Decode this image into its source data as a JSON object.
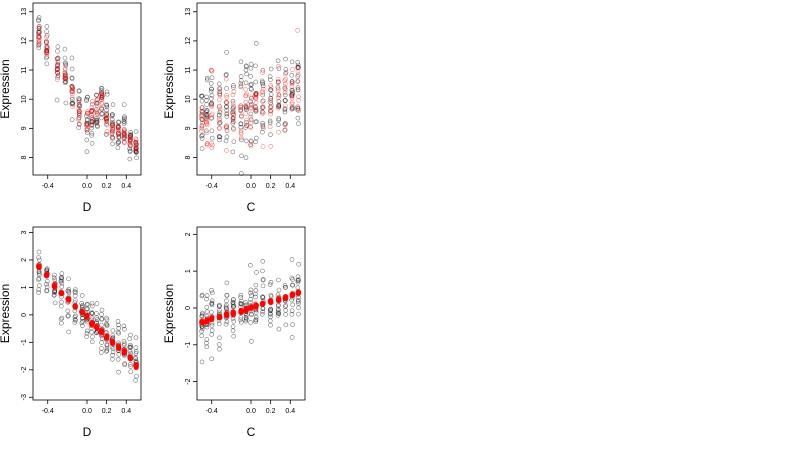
{
  "chart_data": [
    {
      "type": "scatter",
      "xlabel": "D",
      "ylabel": "Expression",
      "xlim": [
        -0.55,
        0.55
      ],
      "ylim": [
        7.4,
        13.3
      ],
      "xticks": [
        -0.4,
        0.0,
        0.2,
        0.4
      ],
      "xtick_labels": [
        "-0.4",
        "0.0",
        "0.2",
        "0.4"
      ],
      "yticks": [
        8,
        9,
        10,
        11,
        12,
        13
      ],
      "ytick_labels": [
        "8",
        "9",
        "10",
        "11",
        "12",
        "13"
      ],
      "grid": false,
      "x_levels": [
        -0.49,
        -0.41,
        -0.3,
        -0.22,
        -0.15,
        -0.08,
        0.0,
        0.05,
        0.1,
        0.15,
        0.2,
        0.26,
        0.32,
        0.38,
        0.44,
        0.5
      ],
      "series": [
        {
          "kind": "observed",
          "color": "#000000",
          "marker": "open-circle",
          "x_levels": [
            -0.49,
            -0.41,
            -0.3,
            -0.22,
            -0.15,
            -0.08,
            0.0,
            0.05,
            0.1,
            0.15,
            0.2,
            0.26,
            0.32,
            0.38,
            0.44,
            0.5
          ],
          "centers": [
            12.1,
            11.7,
            11.1,
            10.8,
            10.3,
            9.8,
            9.4,
            9.2,
            9.6,
            9.9,
            9.3,
            9.0,
            8.8,
            8.9,
            8.6,
            8.5
          ],
          "spread": [
            0.6,
            0.7,
            0.7,
            0.8,
            0.9,
            0.9,
            0.8,
            0.8,
            0.8,
            0.8,
            0.7,
            0.6,
            0.6,
            0.6,
            0.6,
            0.5
          ]
        },
        {
          "kind": "fitted",
          "color": "#ff0000",
          "marker": "open-circle",
          "x_levels": [
            -0.49,
            -0.41,
            -0.3,
            -0.22,
            -0.15,
            -0.08,
            0.0,
            0.05,
            0.1,
            0.15,
            0.2,
            0.26,
            0.32,
            0.38,
            0.44,
            0.5
          ],
          "centers": [
            12.1,
            11.8,
            11.1,
            10.8,
            10.2,
            9.6,
            9.3,
            9.4,
            9.8,
            9.9,
            9.3,
            9.0,
            8.9,
            8.8,
            8.6,
            8.4
          ],
          "spread": [
            0.3,
            0.3,
            0.3,
            0.3,
            0.4,
            0.4,
            0.4,
            0.4,
            0.4,
            0.4,
            0.3,
            0.3,
            0.3,
            0.3,
            0.3,
            0.3
          ]
        }
      ]
    },
    {
      "type": "scatter",
      "xlabel": "C",
      "ylabel": "Expression",
      "xlim": [
        -0.55,
        0.55
      ],
      "ylim": [
        7.4,
        13.3
      ],
      "xticks": [
        -0.4,
        0.0,
        0.2,
        0.4
      ],
      "xtick_labels": [
        "-0.4",
        "0.0",
        "0.2",
        "0.4"
      ],
      "yticks": [
        8,
        9,
        10,
        11,
        12,
        13
      ],
      "ytick_labels": [
        "8",
        "9",
        "10",
        "11",
        "12",
        "13"
      ],
      "grid": false,
      "series": [
        {
          "kind": "observed",
          "color": "#000000",
          "marker": "open-circle",
          "x_levels": [
            -0.5,
            -0.45,
            -0.4,
            -0.32,
            -0.25,
            -0.18,
            -0.1,
            -0.05,
            0.0,
            0.05,
            0.12,
            0.2,
            0.28,
            0.35,
            0.42,
            0.48
          ],
          "centers": [
            9.3,
            9.4,
            9.5,
            9.6,
            9.6,
            9.7,
            9.7,
            9.8,
            9.8,
            9.9,
            9.9,
            10.0,
            10.1,
            10.1,
            10.2,
            10.3
          ],
          "spread": [
            1.2,
            1.3,
            1.3,
            1.3,
            1.3,
            1.4,
            1.4,
            1.4,
            1.4,
            1.4,
            1.4,
            1.3,
            1.3,
            1.4,
            1.4,
            1.4
          ]
        },
        {
          "kind": "fitted",
          "color": "#ff0000",
          "marker": "open-circle",
          "x_levels": [
            -0.5,
            -0.45,
            -0.4,
            -0.32,
            -0.25,
            -0.18,
            -0.1,
            -0.05,
            0.0,
            0.05,
            0.12,
            0.2,
            0.28,
            0.35,
            0.42,
            0.48
          ],
          "centers": [
            9.3,
            9.4,
            9.5,
            9.6,
            9.6,
            9.7,
            9.7,
            9.8,
            9.8,
            9.9,
            9.9,
            10.0,
            10.1,
            10.1,
            10.2,
            10.3
          ],
          "spread": [
            1.0,
            1.0,
            1.1,
            1.0,
            1.0,
            1.0,
            1.1,
            1.1,
            1.0,
            1.0,
            1.1,
            1.1,
            1.1,
            1.1,
            1.1,
            1.2
          ]
        }
      ]
    },
    {
      "type": "scatter",
      "xlabel": "D",
      "ylabel": "Expression",
      "xlim": [
        -0.55,
        0.55
      ],
      "ylim": [
        -3.1,
        3.2
      ],
      "xticks": [
        -0.4,
        0.0,
        0.2,
        0.4
      ],
      "xtick_labels": [
        "-0.4",
        "0.0",
        "0.2",
        "0.4"
      ],
      "yticks": [
        -3,
        -2,
        -1,
        0,
        1,
        2,
        3
      ],
      "ytick_labels": [
        "-3",
        "-2",
        "-1",
        "0",
        "1",
        "2",
        "3"
      ],
      "grid": false,
      "series": [
        {
          "kind": "observed",
          "color": "#000000",
          "marker": "open-circle",
          "x_levels": [
            -0.49,
            -0.41,
            -0.33,
            -0.26,
            -0.19,
            -0.12,
            -0.05,
            0.0,
            0.05,
            0.1,
            0.15,
            0.2,
            0.26,
            0.32,
            0.38,
            0.44,
            0.5
          ],
          "centers": [
            1.7,
            1.4,
            1.0,
            0.8,
            0.5,
            0.3,
            0.1,
            -0.1,
            -0.3,
            -0.4,
            -0.6,
            -0.8,
            -1.0,
            -1.2,
            -1.3,
            -1.5,
            -1.8
          ],
          "spread": [
            0.7,
            0.7,
            0.7,
            0.8,
            0.8,
            0.8,
            0.8,
            0.8,
            0.8,
            0.8,
            0.8,
            0.7,
            0.7,
            0.7,
            0.7,
            0.6,
            0.5
          ]
        },
        {
          "kind": "fitted",
          "color": "#ff0000",
          "marker": "filled-circle",
          "x_levels": [
            -0.49,
            -0.41,
            -0.33,
            -0.26,
            -0.19,
            -0.12,
            -0.05,
            0.0,
            0.05,
            0.1,
            0.15,
            0.2,
            0.26,
            0.32,
            0.38,
            0.44,
            0.5
          ],
          "centers": [
            1.75,
            1.45,
            1.05,
            0.8,
            0.55,
            0.3,
            0.1,
            -0.05,
            -0.3,
            -0.45,
            -0.6,
            -0.8,
            -1.0,
            -1.2,
            -1.35,
            -1.55,
            -1.85
          ],
          "spread": [
            0.06,
            0.06,
            0.06,
            0.06,
            0.06,
            0.06,
            0.06,
            0.06,
            0.06,
            0.06,
            0.06,
            0.06,
            0.06,
            0.06,
            0.06,
            0.06,
            0.06
          ]
        }
      ]
    },
    {
      "type": "scatter",
      "xlabel": "C",
      "ylabel": "Expression",
      "xlim": [
        -0.55,
        0.55
      ],
      "ylim": [
        -2.5,
        2.2
      ],
      "xticks": [
        -0.4,
        0.0,
        0.2,
        0.4
      ],
      "xtick_labels": [
        "-0.4",
        "0.0",
        "0.2",
        "0.4"
      ],
      "yticks": [
        -2,
        -1,
        0,
        1,
        2
      ],
      "ytick_labels": [
        "-2",
        "-1",
        "0",
        "1",
        "2"
      ],
      "grid": false,
      "series": [
        {
          "kind": "observed",
          "color": "#000000",
          "marker": "open-circle",
          "x_levels": [
            -0.5,
            -0.45,
            -0.4,
            -0.32,
            -0.25,
            -0.18,
            -0.1,
            -0.05,
            0.0,
            0.05,
            0.12,
            0.2,
            0.28,
            0.35,
            0.42,
            0.48
          ],
          "centers": [
            -0.4,
            -0.35,
            -0.3,
            -0.25,
            -0.2,
            -0.15,
            -0.1,
            -0.05,
            0.0,
            0.05,
            0.1,
            0.15,
            0.2,
            0.25,
            0.35,
            0.45
          ],
          "spread": [
            0.7,
            0.7,
            0.7,
            0.7,
            0.7,
            0.7,
            0.7,
            0.7,
            0.7,
            0.7,
            0.7,
            0.7,
            0.7,
            0.7,
            0.7,
            0.7
          ]
        },
        {
          "kind": "fitted",
          "color": "#ff0000",
          "marker": "filled-circle",
          "x_levels": [
            -0.5,
            -0.45,
            -0.4,
            -0.32,
            -0.25,
            -0.18,
            -0.1,
            -0.05,
            0.0,
            0.05,
            0.12,
            0.2,
            0.28,
            0.35,
            0.42,
            0.48
          ],
          "centers": [
            -0.38,
            -0.35,
            -0.3,
            -0.25,
            -0.19,
            -0.14,
            -0.09,
            -0.04,
            0.01,
            0.05,
            0.11,
            0.17,
            0.23,
            0.29,
            0.36,
            0.42
          ],
          "spread": [
            0.04,
            0.04,
            0.04,
            0.04,
            0.04,
            0.04,
            0.04,
            0.04,
            0.04,
            0.04,
            0.04,
            0.04,
            0.04,
            0.04,
            0.04,
            0.04
          ]
        }
      ]
    }
  ]
}
